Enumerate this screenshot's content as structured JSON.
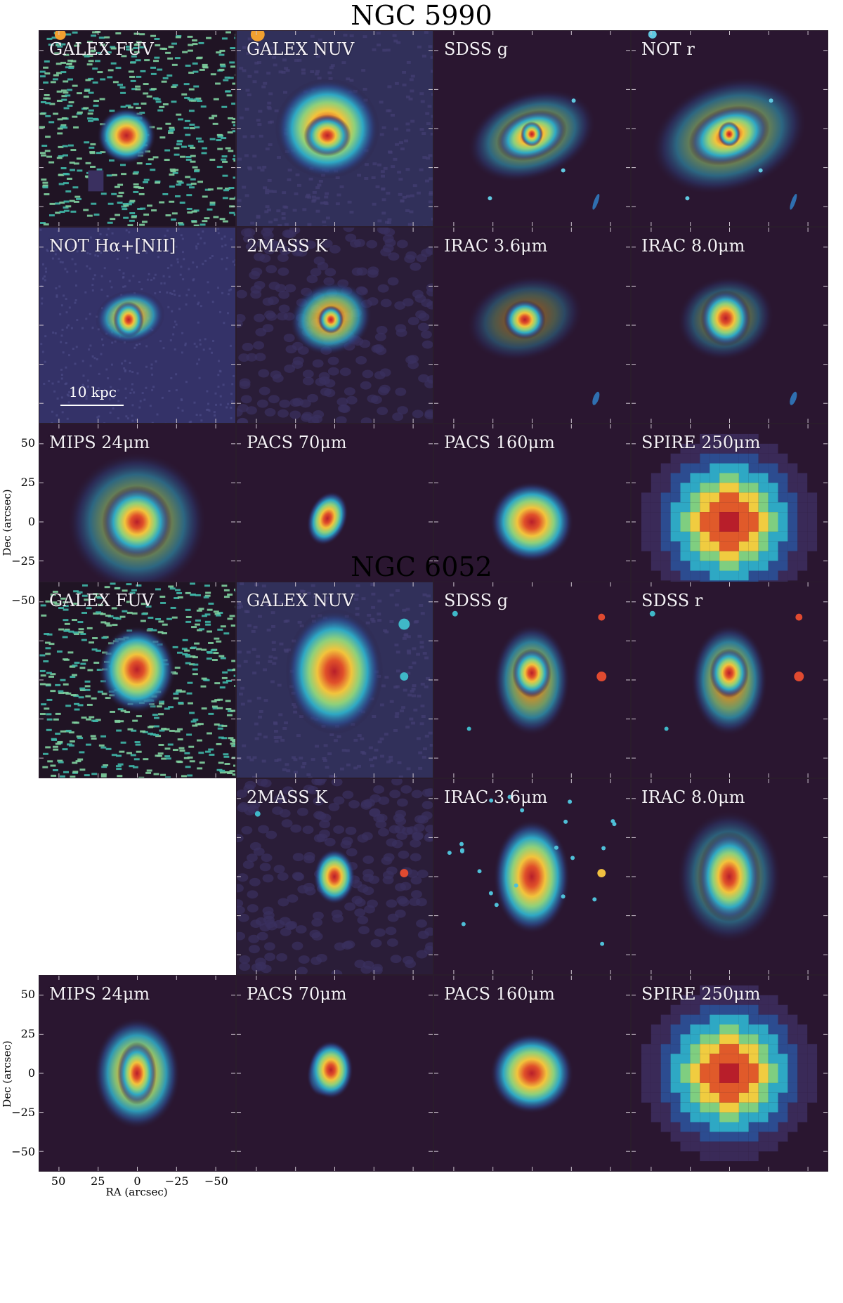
{
  "galaxies": [
    {
      "name": "NGC 5990",
      "panels": [
        {
          "label": "GALEX FUV",
          "style": "noisy"
        },
        {
          "label": "GALEX NUV",
          "style": "nuv"
        },
        {
          "label": "SDSS g",
          "style": "spiral"
        },
        {
          "label": "NOT r",
          "style": "spiral-big"
        },
        {
          "label": "NOT Hα+[NII]",
          "style": "halpha"
        },
        {
          "label": "2MASS K",
          "style": "k"
        },
        {
          "label": "IRAC 3.6μm",
          "style": "irac1"
        },
        {
          "label": "IRAC 8.0μm",
          "style": "irac8"
        },
        {
          "label": "MIPS 24μm",
          "style": "mips"
        },
        {
          "label": "PACS 70μm",
          "style": "pacs70"
        },
        {
          "label": "PACS 160μm",
          "style": "pacs160"
        },
        {
          "label": "SPIRE 250μm",
          "style": "spire"
        }
      ],
      "scale_bar": "10 kpc"
    },
    {
      "name": "NGC 6052",
      "panels": [
        {
          "label": "GALEX FUV",
          "style": "noisy2"
        },
        {
          "label": "GALEX NUV",
          "style": "nuv2"
        },
        {
          "label": "SDSS g",
          "style": "merger"
        },
        {
          "label": "SDSS r",
          "style": "merger"
        },
        {
          "label": "",
          "style": "empty"
        },
        {
          "label": "2MASS K",
          "style": "k2"
        },
        {
          "label": "IRAC 3.6μm",
          "style": "irac1b"
        },
        {
          "label": "IRAC 8.0μm",
          "style": "irac8b"
        },
        {
          "label": "MIPS 24μm",
          "style": "mips2"
        },
        {
          "label": "PACS 70μm",
          "style": "pacs70b"
        },
        {
          "label": "PACS 160μm",
          "style": "pacs160b"
        },
        {
          "label": "SPIRE 250μm",
          "style": "spire2"
        }
      ]
    }
  ],
  "axes": {
    "ylabel": "Dec (arcsec)",
    "xlabel": "RA (arcsec)",
    "yticks": [
      "50",
      "25",
      "0",
      "−25",
      "−50"
    ],
    "xticks": [
      "50",
      "25",
      "0",
      "−25",
      "−50"
    ]
  },
  "colors": {
    "background": "#2a1630",
    "halo": "#3e5a98",
    "cyan": "#35b8c8",
    "yellow": "#f0d040",
    "red": "#c83030"
  }
}
